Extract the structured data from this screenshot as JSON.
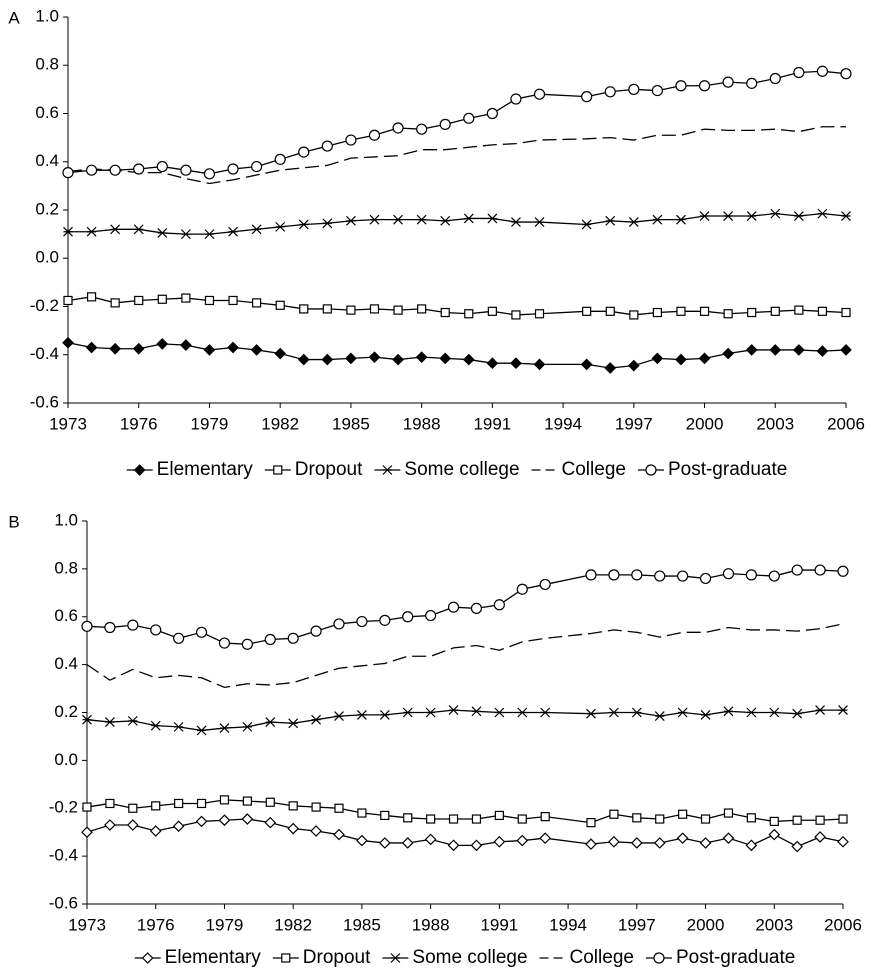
{
  "chart_data": [
    {
      "type": "line",
      "label": "A",
      "x": [
        1973,
        1974,
        1975,
        1976,
        1977,
        1978,
        1979,
        1980,
        1981,
        1982,
        1983,
        1984,
        1985,
        1986,
        1987,
        1988,
        1989,
        1990,
        1991,
        1992,
        1993,
        1995,
        1996,
        1997,
        1998,
        1999,
        2000,
        2001,
        2002,
        2003,
        2004,
        2005,
        2006
      ],
      "xlim": [
        1973,
        2006
      ],
      "xticks": [
        1973,
        1976,
        1979,
        1982,
        1985,
        1988,
        1991,
        1994,
        1997,
        2000,
        2003,
        2006
      ],
      "ylim": [
        -0.6,
        1.0
      ],
      "yticks": [
        {
          "value": -0.6,
          "label": "-0.6"
        },
        {
          "value": -0.4,
          "label": "-0.4"
        },
        {
          "value": -0.2,
          "label": "-0.2"
        },
        {
          "value": 0,
          "label": "0.0"
        },
        {
          "value": 0.2,
          "label": "0.2"
        },
        {
          "value": 0.4,
          "label": "0.4"
        },
        {
          "value": 0.6,
          "label": "0.6"
        },
        {
          "value": 0.8,
          "label": "0.8"
        },
        {
          "value": 1.0,
          "label": "1.0"
        }
      ],
      "series": [
        {
          "name": "Elementary",
          "color": "#000000",
          "marker": "diamond-filled",
          "linestyle": "solid",
          "values": [
            -0.35,
            -0.37,
            -0.375,
            -0.375,
            -0.355,
            -0.36,
            -0.38,
            -0.37,
            -0.38,
            -0.395,
            -0.42,
            -0.42,
            -0.415,
            -0.41,
            -0.42,
            -0.41,
            -0.415,
            -0.42,
            -0.435,
            -0.435,
            -0.44,
            -0.44,
            -0.455,
            -0.445,
            -0.415,
            -0.42,
            -0.415,
            -0.395,
            -0.38,
            -0.38,
            -0.38,
            -0.385,
            -0.38
          ]
        },
        {
          "name": "Dropout",
          "color": "#000000",
          "marker": "square",
          "linestyle": "solid",
          "values": [
            -0.175,
            -0.16,
            -0.185,
            -0.175,
            -0.17,
            -0.165,
            -0.175,
            -0.175,
            -0.185,
            -0.195,
            -0.21,
            -0.21,
            -0.215,
            -0.21,
            -0.215,
            -0.21,
            -0.225,
            -0.23,
            -0.22,
            -0.235,
            -0.23,
            -0.22,
            -0.22,
            -0.235,
            -0.225,
            -0.22,
            -0.22,
            -0.23,
            -0.225,
            -0.22,
            -0.215,
            -0.22,
            -0.225
          ]
        },
        {
          "name": "Some college",
          "color": "#000000",
          "marker": "x",
          "linestyle": "solid",
          "values": [
            0.11,
            0.11,
            0.12,
            0.12,
            0.105,
            0.1,
            0.1,
            0.11,
            0.12,
            0.13,
            0.14,
            0.145,
            0.155,
            0.16,
            0.16,
            0.16,
            0.155,
            0.165,
            0.165,
            0.15,
            0.15,
            0.14,
            0.155,
            0.15,
            0.16,
            0.16,
            0.175,
            0.175,
            0.175,
            0.185,
            0.175,
            0.185,
            0.175
          ]
        },
        {
          "name": "College",
          "color": "#000000",
          "marker": "none",
          "linestyle": "dashed",
          "values": [
            0.36,
            0.37,
            0.365,
            0.355,
            0.355,
            0.33,
            0.31,
            0.325,
            0.345,
            0.365,
            0.375,
            0.385,
            0.415,
            0.42,
            0.425,
            0.45,
            0.45,
            0.46,
            0.47,
            0.475,
            0.49,
            0.495,
            0.5,
            0.49,
            0.51,
            0.51,
            0.535,
            0.53,
            0.53,
            0.535,
            0.525,
            0.545,
            0.545
          ]
        },
        {
          "name": "Post-graduate",
          "color": "#000000",
          "marker": "circle",
          "linestyle": "solid",
          "values": [
            0.355,
            0.365,
            0.365,
            0.37,
            0.38,
            0.365,
            0.35,
            0.37,
            0.38,
            0.41,
            0.44,
            0.465,
            0.49,
            0.51,
            0.54,
            0.535,
            0.555,
            0.58,
            0.6,
            0.66,
            0.68,
            0.67,
            0.69,
            0.7,
            0.695,
            0.715,
            0.715,
            0.73,
            0.725,
            0.745,
            0.77,
            0.775,
            0.765
          ]
        }
      ]
    },
    {
      "type": "line",
      "label": "B",
      "x": [
        1973,
        1974,
        1975,
        1976,
        1977,
        1978,
        1979,
        1980,
        1981,
        1982,
        1983,
        1984,
        1985,
        1986,
        1987,
        1988,
        1989,
        1990,
        1991,
        1992,
        1993,
        1995,
        1996,
        1997,
        1998,
        1999,
        2000,
        2001,
        2002,
        2003,
        2004,
        2005,
        2006
      ],
      "xlim": [
        1973,
        2006
      ],
      "xticks": [
        1973,
        1976,
        1979,
        1982,
        1985,
        1988,
        1991,
        1994,
        1997,
        2000,
        2003,
        2006
      ],
      "ylim": [
        -0.6,
        1.0
      ],
      "yticks": [
        {
          "value": -0.6,
          "label": "-0.6"
        },
        {
          "value": -0.4,
          "label": "-0.4"
        },
        {
          "value": -0.2,
          "label": "-0.2"
        },
        {
          "value": 0,
          "label": "0.0"
        },
        {
          "value": 0.2,
          "label": "0.2"
        },
        {
          "value": 0.4,
          "label": "0.4"
        },
        {
          "value": 0.6,
          "label": "0.6"
        },
        {
          "value": 0.8,
          "label": "0.8"
        },
        {
          "value": 1.0,
          "label": "1.0"
        }
      ],
      "series": [
        {
          "name": "Elementary",
          "color": "#000000",
          "marker": "diamond",
          "linestyle": "solid",
          "values": [
            -0.3,
            -0.27,
            -0.27,
            -0.295,
            -0.275,
            -0.255,
            -0.25,
            -0.245,
            -0.26,
            -0.285,
            -0.295,
            -0.31,
            -0.335,
            -0.345,
            -0.345,
            -0.33,
            -0.355,
            -0.355,
            -0.34,
            -0.335,
            -0.325,
            -0.35,
            -0.34,
            -0.345,
            -0.345,
            -0.325,
            -0.345,
            -0.325,
            -0.355,
            -0.31,
            -0.36,
            -0.32,
            -0.34
          ]
        },
        {
          "name": "Dropout",
          "color": "#000000",
          "marker": "square",
          "linestyle": "solid",
          "values": [
            -0.195,
            -0.18,
            -0.2,
            -0.19,
            -0.18,
            -0.18,
            -0.165,
            -0.17,
            -0.175,
            -0.19,
            -0.195,
            -0.2,
            -0.22,
            -0.23,
            -0.24,
            -0.245,
            -0.245,
            -0.245,
            -0.23,
            -0.245,
            -0.235,
            -0.26,
            -0.225,
            -0.24,
            -0.245,
            -0.225,
            -0.245,
            -0.22,
            -0.24,
            -0.255,
            -0.25,
            -0.25,
            -0.245
          ]
        },
        {
          "name": "Some college",
          "color": "#000000",
          "marker": "x",
          "linestyle": "solid",
          "values": [
            0.17,
            0.16,
            0.165,
            0.145,
            0.14,
            0.125,
            0.135,
            0.14,
            0.16,
            0.155,
            0.17,
            0.185,
            0.19,
            0.19,
            0.2,
            0.2,
            0.21,
            0.205,
            0.2,
            0.2,
            0.2,
            0.195,
            0.2,
            0.2,
            0.185,
            0.2,
            0.19,
            0.205,
            0.2,
            0.2,
            0.195,
            0.21,
            0.21
          ]
        },
        {
          "name": "College",
          "color": "#000000",
          "marker": "none",
          "linestyle": "dashed",
          "values": [
            0.4,
            0.335,
            0.38,
            0.345,
            0.355,
            0.345,
            0.305,
            0.32,
            0.315,
            0.325,
            0.355,
            0.385,
            0.395,
            0.405,
            0.435,
            0.435,
            0.47,
            0.48,
            0.46,
            0.495,
            0.51,
            0.53,
            0.545,
            0.535,
            0.515,
            0.535,
            0.535,
            0.555,
            0.545,
            0.545,
            0.54,
            0.55,
            0.57
          ]
        },
        {
          "name": "Post-graduate",
          "color": "#000000",
          "marker": "circle",
          "linestyle": "solid",
          "values": [
            0.56,
            0.555,
            0.565,
            0.545,
            0.51,
            0.535,
            0.49,
            0.485,
            0.505,
            0.51,
            0.54,
            0.57,
            0.58,
            0.585,
            0.6,
            0.605,
            0.64,
            0.635,
            0.65,
            0.715,
            0.735,
            0.775,
            0.775,
            0.775,
            0.77,
            0.77,
            0.76,
            0.78,
            0.775,
            0.77,
            0.795,
            0.795,
            0.79
          ]
        }
      ]
    }
  ]
}
